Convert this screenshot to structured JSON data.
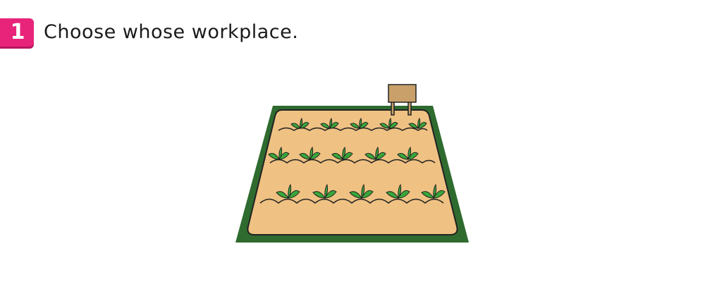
{
  "question": {
    "number": "1",
    "text": "Choose whose workplace."
  },
  "illustration": {
    "subject": "farm-field",
    "colors": {
      "border": "#2f6b2f",
      "soil": "#efc283",
      "outline": "#222222",
      "sign": "#c9a06a",
      "leaf": "#3aa63a"
    }
  }
}
